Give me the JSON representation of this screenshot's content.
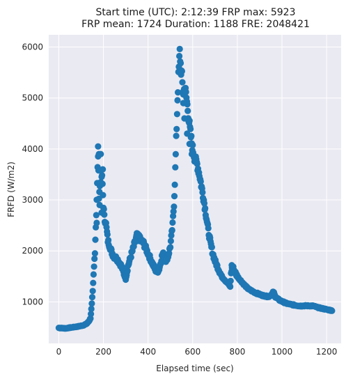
{
  "chart_data": {
    "type": "scatter",
    "title_lines": [
      "Start time (UTC): 2:12:39 FRP max: 5923",
      "FRP mean: 1724 Duration: 1188 FRE: 2048421"
    ],
    "xlabel": "Elapsed time (sec)",
    "ylabel": "FRFD (W/m2)",
    "xlim": [
      -45,
      1265
    ],
    "ylim": [
      185,
      6240
    ],
    "xticks": [
      0,
      200,
      400,
      600,
      800,
      1000,
      1200
    ],
    "yticks": [
      1000,
      2000,
      3000,
      4000,
      5000,
      6000
    ],
    "grid": true,
    "background": "#eaeaf2",
    "marker_color": "#1f77b4",
    "x_extent": [
      0,
      1225
    ],
    "anchors": [
      [
        0,
        490
      ],
      [
        30,
        480
      ],
      [
        60,
        500
      ],
      [
        90,
        520
      ],
      [
        110,
        540
      ],
      [
        125,
        570
      ],
      [
        135,
        620
      ],
      [
        142,
        680
      ],
      [
        147,
        900
      ],
      [
        152,
        1200
      ],
      [
        157,
        1600
      ],
      [
        162,
        2000
      ],
      [
        167,
        2600
      ],
      [
        172,
        3300
      ],
      [
        176,
        3900
      ],
      [
        180,
        3100
      ],
      [
        185,
        3300
      ],
      [
        190,
        3500
      ],
      [
        195,
        3400
      ],
      [
        200,
        2900
      ],
      [
        205,
        2600
      ],
      [
        210,
        2600
      ],
      [
        215,
        2400
      ],
      [
        220,
        2200
      ],
      [
        228,
        2100
      ],
      [
        235,
        2000
      ],
      [
        245,
        1900
      ],
      [
        260,
        1850
      ],
      [
        275,
        1750
      ],
      [
        285,
        1650
      ],
      [
        292,
        1550
      ],
      [
        300,
        1450
      ],
      [
        310,
        1700
      ],
      [
        320,
        1850
      ],
      [
        330,
        2000
      ],
      [
        340,
        2150
      ],
      [
        350,
        2300
      ],
      [
        360,
        2250
      ],
      [
        370,
        2200
      ],
      [
        380,
        2150
      ],
      [
        390,
        2050
      ],
      [
        400,
        1950
      ],
      [
        410,
        1850
      ],
      [
        420,
        1750
      ],
      [
        430,
        1650
      ],
      [
        440,
        1580
      ],
      [
        450,
        1650
      ],
      [
        458,
        1800
      ],
      [
        465,
        1950
      ],
      [
        472,
        1900
      ],
      [
        480,
        1820
      ],
      [
        490,
        1900
      ],
      [
        500,
        2100
      ],
      [
        510,
        2500
      ],
      [
        517,
        3000
      ],
      [
        522,
        3600
      ],
      [
        527,
        4300
      ],
      [
        532,
        5000
      ],
      [
        537,
        5500
      ],
      [
        542,
        5900
      ],
      [
        547,
        5600
      ],
      [
        552,
        5400
      ],
      [
        557,
        5100
      ],
      [
        565,
        5200
      ],
      [
        572,
        5000
      ],
      [
        580,
        4700
      ],
      [
        590,
        4300
      ],
      [
        600,
        4000
      ],
      [
        610,
        3800
      ],
      [
        620,
        3700
      ],
      [
        630,
        3500
      ],
      [
        640,
        3250
      ],
      [
        650,
        3000
      ],
      [
        660,
        2700
      ],
      [
        670,
        2400
      ],
      [
        680,
        2150
      ],
      [
        690,
        1950
      ],
      [
        700,
        1800
      ],
      [
        710,
        1700
      ],
      [
        720,
        1600
      ],
      [
        730,
        1500
      ],
      [
        740,
        1450
      ],
      [
        750,
        1400
      ],
      [
        760,
        1350
      ],
      [
        768,
        1300
      ],
      [
        773,
        1600
      ],
      [
        778,
        1700
      ],
      [
        790,
        1580
      ],
      [
        800,
        1500
      ],
      [
        815,
        1420
      ],
      [
        830,
        1340
      ],
      [
        850,
        1250
      ],
      [
        880,
        1180
      ],
      [
        910,
        1130
      ],
      [
        940,
        1100
      ],
      [
        955,
        1150
      ],
      [
        962,
        1200
      ],
      [
        970,
        1100
      ],
      [
        990,
        1030
      ],
      [
        1020,
        970
      ],
      [
        1050,
        940
      ],
      [
        1080,
        920
      ],
      [
        1110,
        925
      ],
      [
        1140,
        920
      ],
      [
        1160,
        890
      ],
      [
        1180,
        870
      ],
      [
        1200,
        850
      ],
      [
        1225,
        830
      ]
    ],
    "outliers": [
      [
        176,
        4050
      ],
      [
        180,
        3900
      ],
      [
        188,
        3900
      ],
      [
        197,
        3600
      ],
      [
        183,
        2900
      ],
      [
        192,
        2750
      ],
      [
        170,
        2550
      ],
      [
        558,
        4900
      ],
      [
        563,
        4600
      ],
      [
        575,
        4300
      ],
      [
        586,
        4100
      ],
      [
        596,
        3900
      ],
      [
        360,
        2310
      ],
      [
        775,
        1720
      ]
    ]
  }
}
